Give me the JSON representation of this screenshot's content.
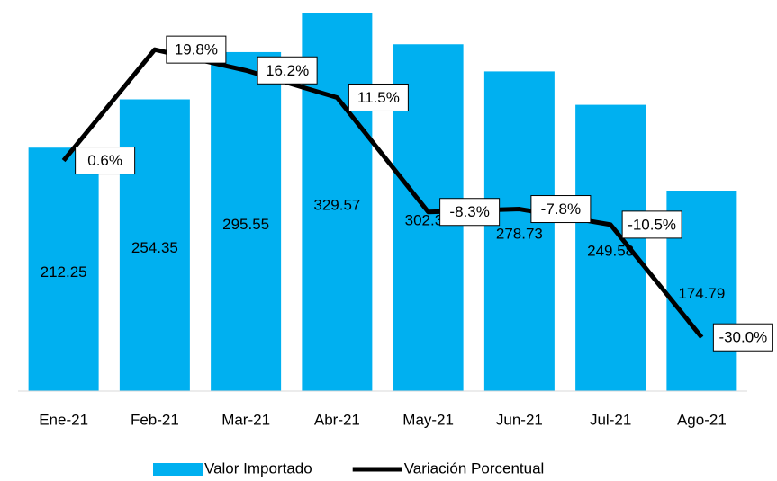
{
  "chart_data": {
    "type": "bar-line",
    "categories": [
      "Ene-21",
      "Feb-21",
      "Mar-21",
      "Abr-21",
      "May-21",
      "Jun-21",
      "Jul-21",
      "Ago-21"
    ],
    "series": [
      {
        "name": "Valor Importado",
        "type": "bar",
        "color": "#00b0f0",
        "values": [
          212.25,
          254.35,
          295.55,
          329.57,
          302.37,
          278.73,
          249.58,
          174.79
        ]
      },
      {
        "name": "Variación Porcentual",
        "type": "line",
        "axis": "y2",
        "color": "#000000",
        "values": [
          0.6,
          19.8,
          16.2,
          11.5,
          -8.3,
          -7.8,
          -10.5,
          -30.0
        ],
        "value_labels": [
          "0.6%",
          "19.8%",
          "16.2%",
          "11.5%",
          "-8.3%",
          "-7.8%",
          "-10.5%",
          "-30.0%"
        ]
      }
    ],
    "ylim": [
      0,
      330
    ],
    "y2lim": [
      -39.3,
      26.2
    ],
    "legend": "bottom"
  }
}
